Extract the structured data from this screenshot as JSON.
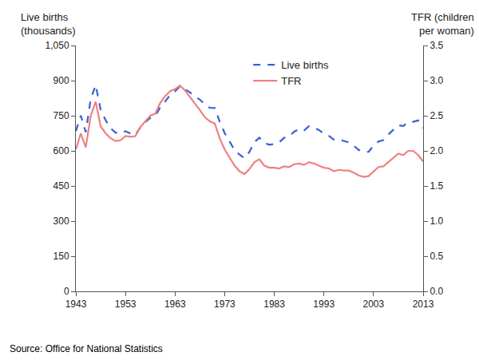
{
  "chart_data": {
    "type": "line",
    "y_label": "Live births\n(thousands)",
    "y2_label": "TFR (children\nper woman)",
    "source": "Source: Office for National Statistics",
    "x": [
      1943,
      1944,
      1945,
      1946,
      1947,
      1948,
      1949,
      1950,
      1951,
      1952,
      1953,
      1954,
      1955,
      1956,
      1957,
      1958,
      1959,
      1960,
      1961,
      1962,
      1963,
      1964,
      1965,
      1966,
      1967,
      1968,
      1969,
      1970,
      1971,
      1972,
      1973,
      1974,
      1975,
      1976,
      1977,
      1978,
      1979,
      1980,
      1981,
      1982,
      1983,
      1984,
      1985,
      1986,
      1987,
      1988,
      1989,
      1990,
      1991,
      1992,
      1993,
      1994,
      1995,
      1996,
      1997,
      1998,
      1999,
      2000,
      2001,
      2002,
      2003,
      2004,
      2005,
      2006,
      2007,
      2008,
      2009,
      2010,
      2011,
      2012,
      2013
    ],
    "series": [
      {
        "name": "Live births",
        "color": "#3b5fd0",
        "line_style": "dash",
        "values": [
          684,
          751,
          680,
          821,
          881,
          775,
          731,
          697,
          678,
          674,
          684,
          674,
          668,
          700,
          723,
          741,
          749,
          785,
          811,
          839,
          854,
          876,
          863,
          850,
          832,
          819,
          798,
          784,
          783,
          725,
          676,
          640,
          603,
          584,
          569,
          596,
          638,
          656,
          634,
          626,
          629,
          637,
          656,
          661,
          682,
          693,
          687,
          706,
          699,
          689,
          673,
          664,
          648,
          649,
          643,
          636,
          622,
          604,
          595,
          596,
          622,
          640,
          646,
          670,
          690,
          709,
          706,
          723,
          724,
          730,
          698
        ]
      },
      {
        "name": "TFR",
        "color": "#f08080",
        "line_style": "solid",
        "axis": "y2",
        "values": [
          2.02,
          2.25,
          2.05,
          2.5,
          2.7,
          2.35,
          2.25,
          2.18,
          2.14,
          2.15,
          2.21,
          2.2,
          2.21,
          2.34,
          2.42,
          2.5,
          2.53,
          2.68,
          2.78,
          2.85,
          2.88,
          2.93,
          2.86,
          2.77,
          2.67,
          2.58,
          2.48,
          2.42,
          2.39,
          2.18,
          2.02,
          1.9,
          1.79,
          1.71,
          1.67,
          1.74,
          1.84,
          1.88,
          1.79,
          1.76,
          1.76,
          1.75,
          1.78,
          1.77,
          1.81,
          1.82,
          1.8,
          1.84,
          1.82,
          1.79,
          1.76,
          1.75,
          1.71,
          1.73,
          1.72,
          1.72,
          1.69,
          1.65,
          1.63,
          1.64,
          1.71,
          1.77,
          1.78,
          1.84,
          1.9,
          1.96,
          1.94,
          2.0,
          2.0,
          1.94,
          1.85
        ]
      }
    ],
    "xlim": [
      1943,
      2013
    ],
    "xticks": [
      1943,
      1953,
      1963,
      1973,
      1983,
      1993,
      2003,
      2013
    ],
    "ylim": [
      0,
      1050
    ],
    "yticks": [
      0,
      150,
      300,
      450,
      600,
      750,
      900,
      {
        "value": 1050,
        "label": "1,050"
      }
    ],
    "y2lim": [
      0,
      3.5
    ],
    "y2ticks": [
      {
        "value": 0,
        "label": "0.0"
      },
      0.5,
      {
        "value": 1,
        "label": "1.0"
      },
      1.5,
      {
        "value": 2,
        "label": "2.0"
      },
      2.5,
      {
        "value": 3,
        "label": "3.0"
      },
      3.5
    ],
    "legend": "top",
    "grid": false
  }
}
